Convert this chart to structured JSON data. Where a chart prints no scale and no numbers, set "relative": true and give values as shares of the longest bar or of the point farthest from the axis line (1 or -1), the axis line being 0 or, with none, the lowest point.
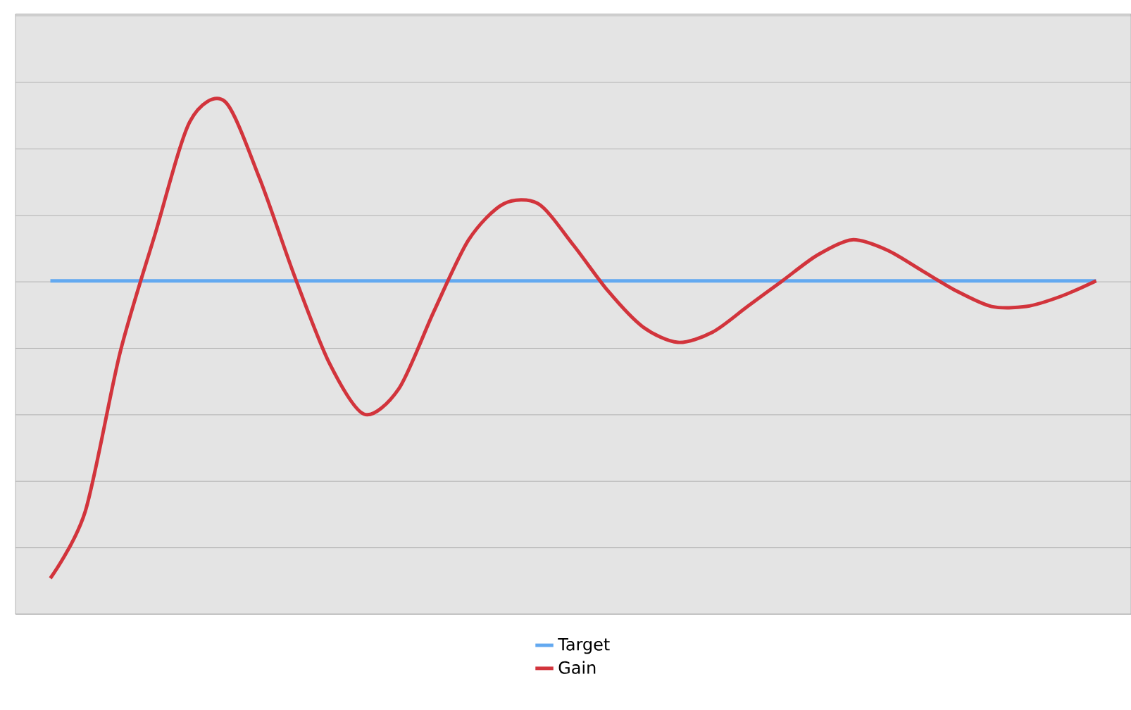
{
  "chart_data": {
    "type": "line",
    "relative": true,
    "grid": "y",
    "legend": "bottom",
    "tick_labels": false,
    "categories": [
      null,
      null,
      null,
      null,
      null,
      null,
      null,
      null,
      null,
      null,
      null,
      null,
      null,
      null,
      null,
      null,
      null,
      null,
      null,
      null,
      null,
      null,
      null,
      null,
      null,
      null,
      null,
      null,
      null,
      null,
      null
    ],
    "series": [
      {
        "name": "Target",
        "color": "#63a9f0",
        "values": [
          0.65,
          0.65,
          0.65,
          0.65,
          0.65,
          0.65,
          0.65,
          0.65,
          0.65,
          0.65,
          0.65,
          0.65,
          0.65,
          0.65,
          0.65,
          0.65,
          0.65,
          0.65,
          0.65,
          0.65,
          0.65,
          0.65,
          0.65,
          0.65,
          0.65,
          0.65,
          0.65,
          0.65,
          0.65,
          0.65,
          0.65
        ]
      },
      {
        "name": "Gain",
        "color": "#d2343c",
        "values": [
          0.07,
          0.2,
          0.51,
          0.74,
          0.96,
          1,
          0.85,
          0.66,
          0.49,
          0.39,
          0.44,
          0.59,
          0.73,
          0.8,
          0.8,
          0.72,
          0.63,
          0.56,
          0.53,
          0.55,
          0.6,
          0.65,
          0.7,
          0.73,
          0.71,
          0.67,
          0.63,
          0.6,
          0.6,
          0.62,
          0.65
        ]
      }
    ]
  }
}
